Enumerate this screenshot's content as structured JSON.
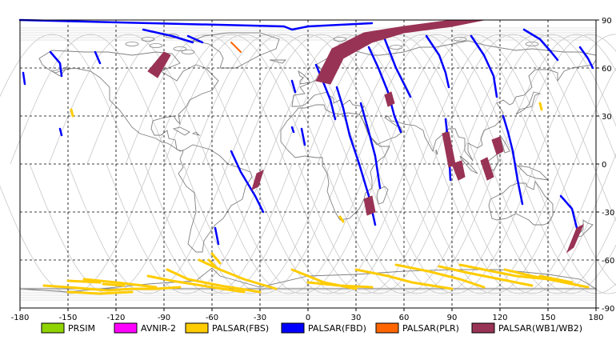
{
  "map": {
    "lon_ticks": [
      "-180",
      "-150",
      "-120",
      "-90",
      "-60",
      "-30",
      "0",
      "30",
      "60",
      "90",
      "120",
      "150",
      "180"
    ],
    "lat_ticks": [
      "90",
      "60",
      "30",
      "0",
      "-30",
      "-60",
      "-90"
    ],
    "background_color": "#ffffff",
    "grid_style": "dashed black",
    "orbit_track_color": "#c8c8c8",
    "coast_color": "#808080"
  },
  "legend": [
    {
      "key": "prsim",
      "label": "PRSIM",
      "color": "#8fd400"
    },
    {
      "key": "avnir",
      "label": "AVNIR-2",
      "color": "#ff00ff"
    },
    {
      "key": "fbs",
      "label": "PALSAR(FBS)",
      "color": "#ffcc00"
    },
    {
      "key": "fbd",
      "label": "PALSAR(FBD)",
      "color": "#0000ff"
    },
    {
      "key": "plr",
      "label": "PALSAR(PLR)",
      "color": "#ff6600"
    },
    {
      "key": "wb",
      "label": "PALSAR(WB1/WB2)",
      "color": "#993355"
    }
  ],
  "swaths": {
    "fbd": [
      [
        [
          -180,
          90
        ],
        [
          -15,
          86
        ],
        [
          -10,
          84
        ],
        [
          0,
          86
        ],
        [
          40,
          88
        ]
      ],
      [
        [
          -103,
          84
        ],
        [
          -85,
          80
        ],
        [
          -72,
          76
        ]
      ],
      [
        [
          -161,
          70
        ],
        [
          -155,
          63
        ],
        [
          -154,
          55
        ]
      ],
      [
        [
          -133,
          70
        ],
        [
          -130,
          63
        ]
      ],
      [
        [
          -178,
          57
        ],
        [
          -177,
          50
        ]
      ],
      [
        [
          -155,
          22
        ],
        [
          -154,
          18
        ]
      ],
      [
        [
          5,
          62
        ],
        [
          10,
          50
        ],
        [
          14,
          40
        ],
        [
          17,
          28
        ]
      ],
      [
        [
          -4,
          22
        ],
        [
          -2,
          12
        ]
      ],
      [
        [
          -10,
          23
        ],
        [
          -9,
          20
        ]
      ],
      [
        [
          33,
          38
        ],
        [
          38,
          20
        ],
        [
          42,
          5
        ],
        [
          45,
          -15
        ]
      ],
      [
        [
          48,
          78
        ],
        [
          55,
          60
        ],
        [
          60,
          50
        ],
        [
          64,
          42
        ]
      ],
      [
        [
          38,
          73
        ],
        [
          44,
          60
        ],
        [
          50,
          45
        ],
        [
          54,
          30
        ],
        [
          58,
          20
        ]
      ],
      [
        [
          18,
          48
        ],
        [
          22,
          35
        ],
        [
          26,
          18
        ],
        [
          32,
          0
        ],
        [
          38,
          -20
        ],
        [
          42,
          -38
        ]
      ],
      [
        [
          74,
          80
        ],
        [
          82,
          68
        ],
        [
          86,
          57
        ],
        [
          88,
          48
        ]
      ],
      [
        [
          86,
          28
        ],
        [
          88,
          10
        ],
        [
          89,
          -10
        ]
      ],
      [
        [
          -48,
          8
        ],
        [
          -42,
          -5
        ],
        [
          -33,
          -20
        ],
        [
          -28,
          -30
        ]
      ],
      [
        [
          -10,
          52
        ],
        [
          -8,
          45
        ]
      ],
      [
        [
          135,
          84
        ],
        [
          145,
          78
        ],
        [
          152,
          70
        ],
        [
          156,
          65
        ]
      ],
      [
        [
          102,
          80
        ],
        [
          110,
          68
        ],
        [
          116,
          55
        ],
        [
          118,
          42
        ]
      ],
      [
        [
          122,
          30
        ],
        [
          125,
          20
        ],
        [
          128,
          8
        ],
        [
          131,
          -10
        ],
        [
          134,
          -25
        ]
      ],
      [
        [
          158,
          -20
        ],
        [
          165,
          -28
        ],
        [
          168,
          -40
        ]
      ],
      [
        [
          170,
          73
        ],
        [
          175,
          66
        ],
        [
          178,
          60
        ]
      ],
      [
        [
          -58,
          -40
        ],
        [
          -56,
          -50
        ]
      ],
      [
        [
          -75,
          80
        ],
        [
          -66,
          76
        ]
      ]
    ],
    "fbs": [
      [
        [
          -165,
          -76
        ],
        [
          -150,
          -77
        ],
        [
          -125,
          -79
        ],
        [
          -110,
          -78
        ],
        [
          -95,
          -78
        ],
        [
          -80,
          -77
        ]
      ],
      [
        [
          -140,
          -72
        ],
        [
          -120,
          -74
        ],
        [
          -95,
          -77
        ]
      ],
      [
        [
          -100,
          -70
        ],
        [
          -85,
          -73
        ],
        [
          -60,
          -77
        ],
        [
          -40,
          -80
        ]
      ],
      [
        [
          -88,
          -66
        ],
        [
          -75,
          -72
        ],
        [
          -55,
          -76
        ],
        [
          -30,
          -80
        ]
      ],
      [
        [
          -68,
          -60
        ],
        [
          -55,
          -66
        ],
        [
          -40,
          -72
        ],
        [
          -20,
          -78
        ]
      ],
      [
        [
          -62,
          -60
        ],
        [
          -60,
          -62
        ],
        [
          -58,
          -64
        ]
      ],
      [
        [
          -60,
          -56
        ],
        [
          -55,
          -62
        ]
      ],
      [
        [
          -10,
          -66
        ],
        [
          0,
          -70
        ],
        [
          10,
          -74
        ],
        [
          30,
          -78
        ]
      ],
      [
        [
          0,
          -74
        ],
        [
          20,
          -76
        ],
        [
          40,
          -77
        ]
      ],
      [
        [
          30,
          -66
        ],
        [
          50,
          -70
        ],
        [
          65,
          -74
        ],
        [
          90,
          -78
        ]
      ],
      [
        [
          55,
          -63
        ],
        [
          75,
          -67
        ],
        [
          95,
          -72
        ],
        [
          110,
          -77
        ]
      ],
      [
        [
          82,
          -64
        ],
        [
          100,
          -68
        ],
        [
          120,
          -72
        ],
        [
          140,
          -76
        ]
      ],
      [
        [
          95,
          -63
        ],
        [
          110,
          -66
        ],
        [
          130,
          -70
        ],
        [
          150,
          -72
        ]
      ],
      [
        [
          123,
          -66
        ],
        [
          140,
          -70
        ],
        [
          160,
          -74
        ],
        [
          175,
          -77
        ]
      ],
      [
        [
          145,
          -70
        ],
        [
          165,
          -74
        ]
      ],
      [
        [
          -150,
          -80
        ],
        [
          -130,
          -81
        ],
        [
          -110,
          -80
        ]
      ],
      [
        [
          -148,
          34
        ],
        [
          -147,
          30
        ]
      ],
      [
        [
          145,
          38
        ],
        [
          146,
          34
        ]
      ],
      [
        [
          20,
          -33
        ],
        [
          22,
          -36
        ]
      ],
      [
        [
          -128,
          -75
        ],
        [
          -115,
          -76
        ]
      ],
      [
        [
          -150,
          -73
        ],
        [
          -130,
          -74
        ]
      ]
    ],
    "plr": [
      [
        [
          -48,
          76
        ],
        [
          -42,
          70
        ]
      ]
    ],
    "wb": [
      [
        [
          -90,
          70
        ],
        [
          -100,
          58
        ],
        [
          -94,
          54
        ],
        [
          -86,
          68
        ]
      ],
      [
        [
          5,
          52
        ],
        [
          15,
          72
        ],
        [
          35,
          82
        ],
        [
          60,
          86
        ],
        [
          90,
          90
        ],
        [
          110,
          90
        ],
        [
          90,
          86
        ],
        [
          60,
          82
        ],
        [
          40,
          76
        ],
        [
          22,
          66
        ],
        [
          14,
          50
        ]
      ],
      [
        [
          48,
          43
        ],
        [
          52,
          45
        ],
        [
          54,
          38
        ],
        [
          50,
          36
        ]
      ],
      [
        [
          115,
          15
        ],
        [
          120,
          17
        ],
        [
          122,
          8
        ],
        [
          118,
          6
        ]
      ],
      [
        [
          -32,
          -6
        ],
        [
          -28,
          -4
        ],
        [
          -31,
          -14
        ],
        [
          -35,
          -16
        ]
      ],
      [
        [
          90,
          0
        ],
        [
          96,
          2
        ],
        [
          98,
          -8
        ],
        [
          94,
          -10
        ]
      ],
      [
        [
          84,
          19
        ],
        [
          88,
          20
        ],
        [
          92,
          0
        ],
        [
          88,
          -2
        ]
      ],
      [
        [
          35,
          -22
        ],
        [
          40,
          -20
        ],
        [
          42,
          -30
        ],
        [
          37,
          -32
        ]
      ],
      [
        [
          108,
          2
        ],
        [
          112,
          4
        ],
        [
          116,
          -8
        ],
        [
          112,
          -10
        ]
      ],
      [
        [
          168,
          -40
        ],
        [
          172,
          -38
        ],
        [
          166,
          -52
        ],
        [
          162,
          -55
        ]
      ]
    ]
  }
}
